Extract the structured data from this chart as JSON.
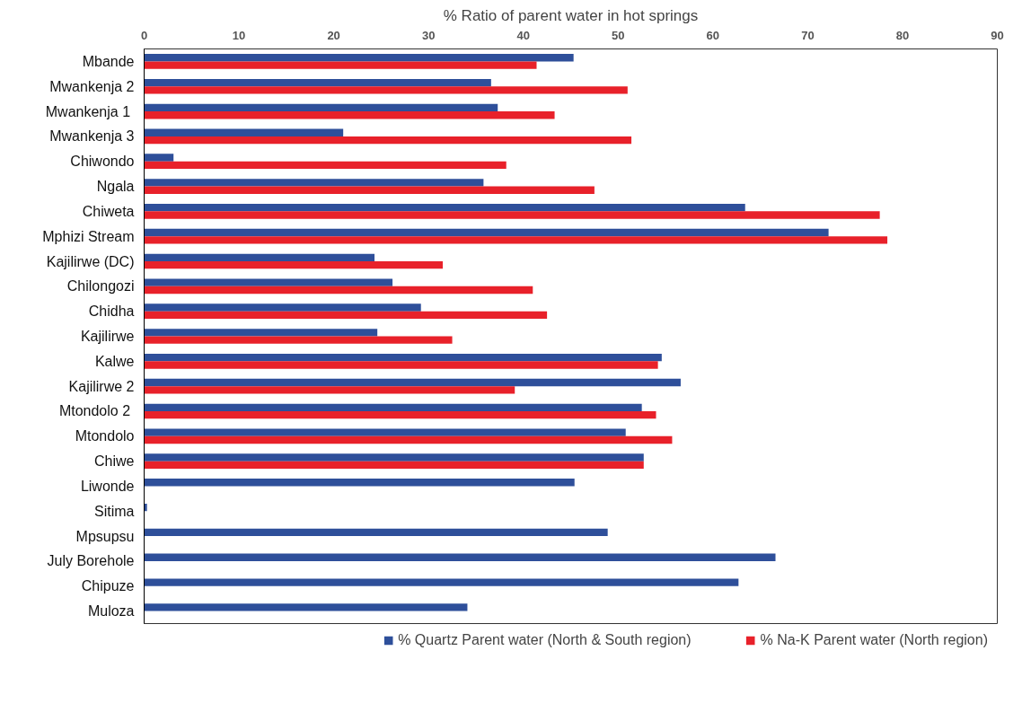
{
  "chart_data": {
    "type": "bar",
    "orientation": "horizontal",
    "title": "% Ratio of parent water in hot springs",
    "categories": [
      "Mbande",
      "Mwankenja 2",
      "Mwankenja  1",
      "Mwankenja 3",
      "Chiwondo",
      "Ngala",
      "Chiweta",
      "Mphizi Stream",
      "Kajilirwe (DC)",
      "Chilongozi",
      "Chidha",
      "Kajilirwe",
      "Kalwe",
      "Kajilirwe 2",
      "Mtondolo  2",
      "Mtondolo",
      "Chiwe",
      "Liwonde",
      "Sitima",
      "Mpsupsu",
      "July Borehole",
      "Chipuze",
      "Muloza"
    ],
    "series": [
      {
        "name": "% Quartz Parent water (North & South region)",
        "color": "#2e4f9a",
        "values": [
          45.3,
          36.6,
          37.3,
          21.0,
          3.1,
          35.8,
          63.4,
          72.2,
          24.3,
          26.2,
          29.2,
          24.6,
          54.6,
          56.6,
          52.5,
          50.8,
          52.7,
          45.4,
          0.3,
          48.9,
          66.6,
          62.7,
          34.1
        ]
      },
      {
        "name": "% Na-K Parent water (North region)",
        "color": "#e8212a",
        "values": [
          41.4,
          51.0,
          43.3,
          51.4,
          38.2,
          47.5,
          77.6,
          78.4,
          31.5,
          41.0,
          42.5,
          32.5,
          54.2,
          39.1,
          54.0,
          55.7,
          52.7,
          null,
          null,
          null,
          null,
          null,
          null
        ]
      }
    ],
    "xlim": [
      0,
      90
    ],
    "xticks": [
      0,
      10,
      20,
      30,
      40,
      50,
      60,
      70,
      80,
      90
    ],
    "grid": false,
    "legend": "bottom"
  }
}
